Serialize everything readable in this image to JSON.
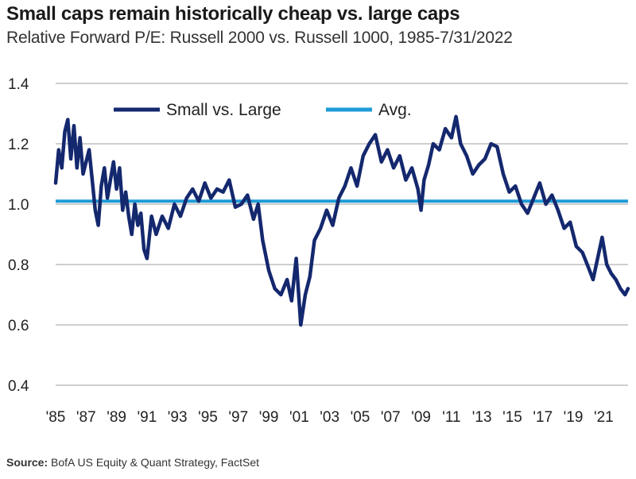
{
  "chart_data": {
    "type": "line",
    "title": "Small caps remain historically cheap vs. large caps",
    "subtitle": "Relative Forward P/E: Russell 2000 vs. Russell 1000, 1985-7/31/2022",
    "source_label": "Source:",
    "source_text": "BofA US Equity & Quant Strategy, FactSet",
    "ylim": [
      0.4,
      1.4
    ],
    "yticks": [
      0.4,
      0.6,
      0.8,
      1.0,
      1.2,
      1.4
    ],
    "ytick_labels": [
      "0.4",
      "0.6",
      "0.8",
      "1.0",
      "1.2",
      "1.4"
    ],
    "xlim": [
      1985,
      2022.6
    ],
    "xticks": [
      1985,
      1987,
      1989,
      1991,
      1993,
      1995,
      1997,
      1999,
      2001,
      2003,
      2005,
      2007,
      2009,
      2011,
      2013,
      2015,
      2017,
      2019,
      2021
    ],
    "xtick_labels": [
      "'85",
      "'87",
      "'89",
      "'91",
      "'93",
      "'95",
      "'97",
      "'99",
      "'01",
      "'03",
      "'05",
      "'07",
      "'09",
      "'11",
      "'13",
      "'15",
      "'17",
      "'19",
      "'21"
    ],
    "grid": true,
    "legend_position": "top-center",
    "series": [
      {
        "name": "Small vs. Large",
        "color": "#14286e",
        "x": [
          1985.0,
          1985.2,
          1985.4,
          1985.6,
          1985.8,
          1986.0,
          1986.2,
          1986.4,
          1986.6,
          1986.8,
          1987.0,
          1987.2,
          1987.4,
          1987.6,
          1987.8,
          1988.0,
          1988.2,
          1988.4,
          1988.6,
          1988.8,
          1989.0,
          1989.2,
          1989.4,
          1989.6,
          1989.8,
          1990.0,
          1990.2,
          1990.4,
          1990.6,
          1990.8,
          1991.0,
          1991.3,
          1991.6,
          1992.0,
          1992.4,
          1992.8,
          1993.2,
          1993.6,
          1994.0,
          1994.4,
          1994.8,
          1995.2,
          1995.6,
          1996.0,
          1996.4,
          1996.8,
          1997.2,
          1997.6,
          1998.0,
          1998.3,
          1998.6,
          1999.0,
          1999.4,
          1999.8,
          2000.2,
          2000.5,
          2000.8,
          2001.1,
          2001.4,
          2001.7,
          2002.0,
          2002.4,
          2002.8,
          2003.2,
          2003.6,
          2004.0,
          2004.4,
          2004.8,
          2005.2,
          2005.6,
          2006.0,
          2006.4,
          2006.8,
          2007.2,
          2007.6,
          2008.0,
          2008.4,
          2008.8,
          2009.0,
          2009.2,
          2009.5,
          2009.8,
          2010.2,
          2010.6,
          2011.0,
          2011.3,
          2011.6,
          2012.0,
          2012.4,
          2012.8,
          2013.2,
          2013.6,
          2014.0,
          2014.4,
          2014.8,
          2015.2,
          2015.6,
          2016.0,
          2016.4,
          2016.8,
          2017.2,
          2017.6,
          2018.0,
          2018.4,
          2018.8,
          2019.2,
          2019.6,
          2020.0,
          2020.3,
          2020.6,
          2020.9,
          2021.2,
          2021.5,
          2021.8,
          2022.1,
          2022.4,
          2022.6
        ],
        "values": [
          1.07,
          1.18,
          1.12,
          1.24,
          1.28,
          1.15,
          1.26,
          1.12,
          1.22,
          1.1,
          1.14,
          1.18,
          1.08,
          0.98,
          0.93,
          1.06,
          1.12,
          1.02,
          1.08,
          1.14,
          1.05,
          1.12,
          0.98,
          1.04,
          0.96,
          0.9,
          1.0,
          0.93,
          0.97,
          0.85,
          0.82,
          0.96,
          0.9,
          0.96,
          0.92,
          1.0,
          0.96,
          1.02,
          1.05,
          1.01,
          1.07,
          1.02,
          1.05,
          1.04,
          1.08,
          0.99,
          1.0,
          1.03,
          0.95,
          1.0,
          0.88,
          0.78,
          0.72,
          0.7,
          0.75,
          0.68,
          0.82,
          0.6,
          0.7,
          0.76,
          0.88,
          0.92,
          0.98,
          0.93,
          1.02,
          1.06,
          1.12,
          1.06,
          1.16,
          1.2,
          1.23,
          1.14,
          1.18,
          1.12,
          1.16,
          1.08,
          1.12,
          1.05,
          0.98,
          1.08,
          1.13,
          1.2,
          1.18,
          1.25,
          1.22,
          1.29,
          1.2,
          1.16,
          1.1,
          1.13,
          1.15,
          1.2,
          1.19,
          1.1,
          1.04,
          1.06,
          1.0,
          0.97,
          1.02,
          1.07,
          1.0,
          1.03,
          0.98,
          0.92,
          0.94,
          0.86,
          0.84,
          0.79,
          0.75,
          0.82,
          0.89,
          0.8,
          0.77,
          0.75,
          0.72,
          0.7,
          0.72
        ]
      },
      {
        "name": "Avg.",
        "color": "#1e9bd7",
        "x": [
          1985,
          2022.6
        ],
        "values": [
          1.01,
          1.01
        ]
      }
    ]
  }
}
